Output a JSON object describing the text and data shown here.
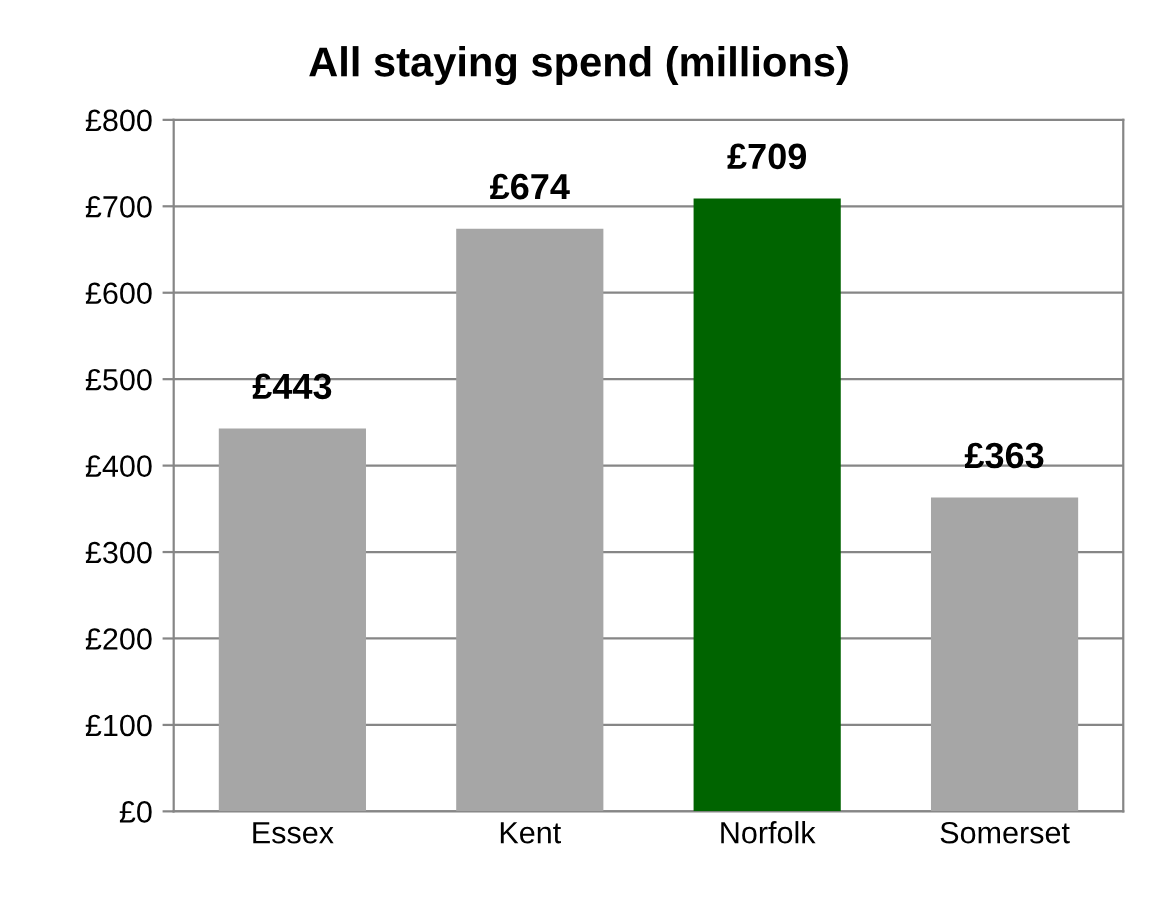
{
  "chart_data": {
    "type": "bar",
    "title": "All staying spend (millions)",
    "categories": [
      "Essex",
      "Kent",
      "Norfolk",
      "Somerset"
    ],
    "values": [
      443,
      674,
      709,
      363
    ],
    "colors": [
      "#a6a6a6",
      "#a6a6a6",
      "#006400",
      "#a6a6a6"
    ],
    "value_labels": [
      "£443",
      "£674",
      "£709",
      "£363"
    ],
    "ylim": [
      0,
      800
    ],
    "yticks": [
      {
        "value": 0,
        "label": "£0"
      },
      {
        "value": 100,
        "label": "£100"
      },
      {
        "value": 200,
        "label": "£200"
      },
      {
        "value": 300,
        "label": "£300"
      },
      {
        "value": 400,
        "label": "£400"
      },
      {
        "value": 500,
        "label": "£500"
      },
      {
        "value": 600,
        "label": "£600"
      },
      {
        "value": 700,
        "label": "£700"
      },
      {
        "value": 800,
        "label": "£800"
      }
    ],
    "grid": "y",
    "legend": false
  }
}
